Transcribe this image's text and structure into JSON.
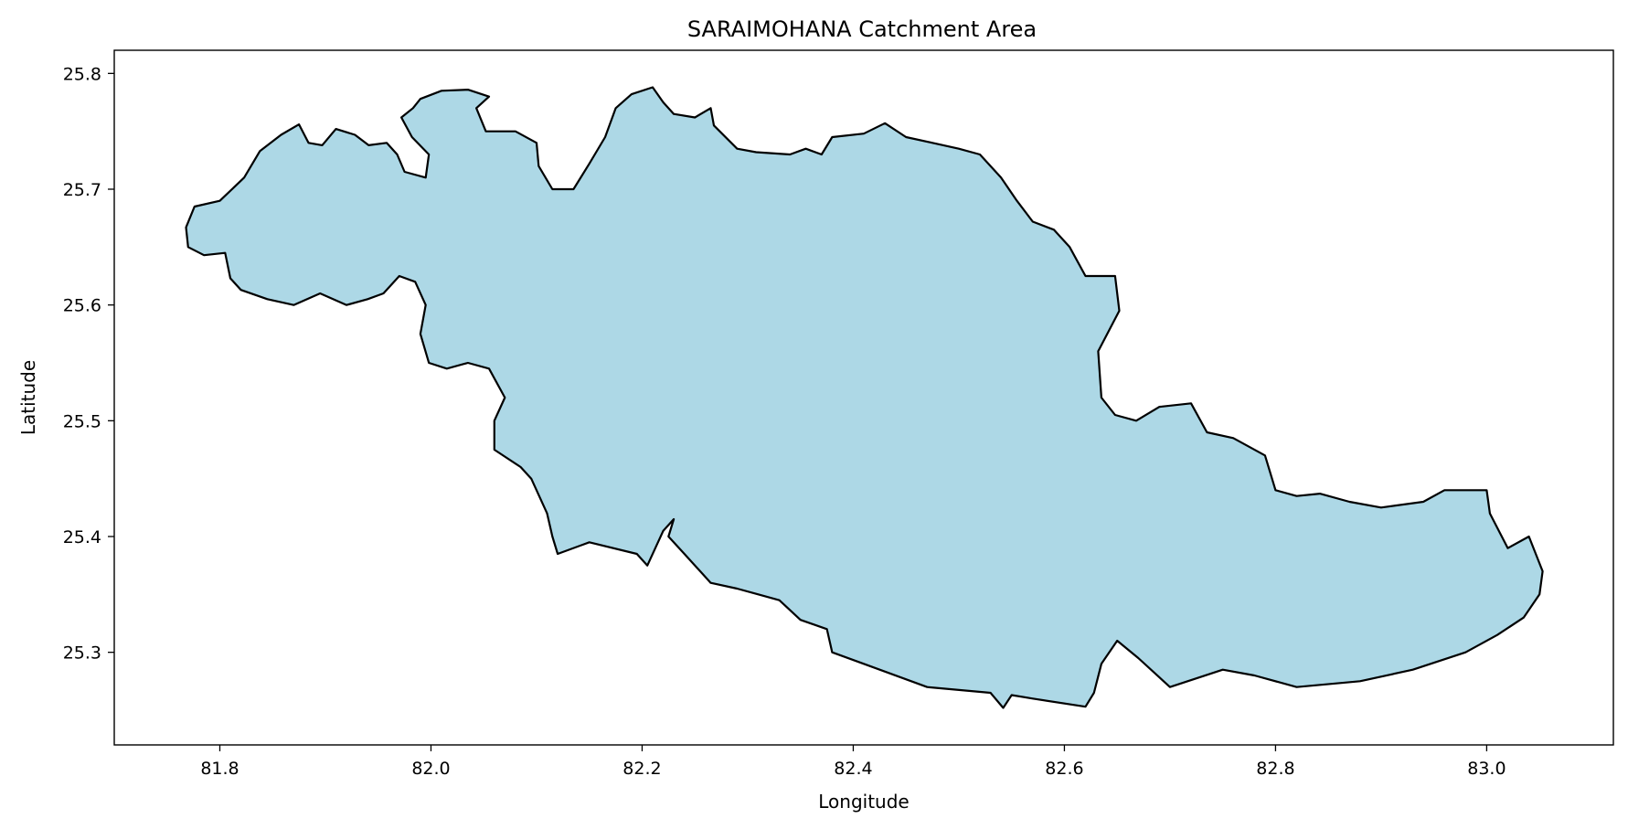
{
  "chart_data": {
    "type": "map",
    "title": "SARAIMOHANA Catchment Area",
    "xlabel": "Longitude",
    "ylabel": "Latitude",
    "xlim": [
      81.7,
      83.12
    ],
    "ylim": [
      25.22,
      25.82
    ],
    "x_ticks": [
      81.8,
      82.0,
      82.2,
      82.4,
      82.6,
      82.8,
      83.0
    ],
    "x_tick_labels": [
      "81.8",
      "82.0",
      "82.2",
      "82.4",
      "82.6",
      "82.8",
      "83.0"
    ],
    "y_ticks": [
      25.3,
      25.4,
      25.5,
      25.6,
      25.7,
      25.8
    ],
    "y_tick_labels": [
      "25.3",
      "25.4",
      "25.5",
      "25.6",
      "25.7",
      "25.8"
    ],
    "grid": false,
    "fill_color": "#add8e6",
    "edge_color": "#000000",
    "boundary": [
      [
        81.768,
        25.667
      ],
      [
        81.776,
        25.685
      ],
      [
        81.8,
        25.69
      ],
      [
        81.823,
        25.71
      ],
      [
        81.838,
        25.733
      ],
      [
        81.858,
        25.747
      ],
      [
        81.875,
        25.756
      ],
      [
        81.884,
        25.74
      ],
      [
        81.897,
        25.738
      ],
      [
        81.91,
        25.752
      ],
      [
        81.928,
        25.747
      ],
      [
        81.941,
        25.738
      ],
      [
        81.958,
        25.74
      ],
      [
        81.968,
        25.73
      ],
      [
        81.975,
        25.715
      ],
      [
        81.995,
        25.71
      ],
      [
        81.998,
        25.73
      ],
      [
        81.982,
        25.745
      ],
      [
        81.972,
        25.762
      ],
      [
        81.983,
        25.77
      ],
      [
        81.99,
        25.778
      ],
      [
        82.01,
        25.785
      ],
      [
        82.035,
        25.786
      ],
      [
        82.055,
        25.78
      ],
      [
        82.043,
        25.77
      ],
      [
        82.052,
        25.75
      ],
      [
        82.08,
        25.75
      ],
      [
        82.1,
        25.74
      ],
      [
        82.102,
        25.72
      ],
      [
        82.115,
        25.7
      ],
      [
        82.135,
        25.7
      ],
      [
        82.15,
        25.722
      ],
      [
        82.165,
        25.745
      ],
      [
        82.175,
        25.77
      ],
      [
        82.19,
        25.782
      ],
      [
        82.21,
        25.788
      ],
      [
        82.22,
        25.775
      ],
      [
        82.23,
        25.765
      ],
      [
        82.25,
        25.762
      ],
      [
        82.265,
        25.77
      ],
      [
        82.268,
        25.755
      ],
      [
        82.29,
        25.735
      ],
      [
        82.308,
        25.732
      ],
      [
        82.34,
        25.73
      ],
      [
        82.355,
        25.735
      ],
      [
        82.37,
        25.73
      ],
      [
        82.38,
        25.745
      ],
      [
        82.41,
        25.748
      ],
      [
        82.43,
        25.757
      ],
      [
        82.45,
        25.745
      ],
      [
        82.475,
        25.74
      ],
      [
        82.5,
        25.735
      ],
      [
        82.52,
        25.73
      ],
      [
        82.54,
        25.71
      ],
      [
        82.555,
        25.69
      ],
      [
        82.57,
        25.672
      ],
      [
        82.59,
        25.665
      ],
      [
        82.605,
        25.65
      ],
      [
        82.62,
        25.625
      ],
      [
        82.648,
        25.625
      ],
      [
        82.652,
        25.595
      ],
      [
        82.632,
        25.56
      ],
      [
        82.635,
        25.52
      ],
      [
        82.648,
        25.505
      ],
      [
        82.668,
        25.5
      ],
      [
        82.69,
        25.512
      ],
      [
        82.72,
        25.515
      ],
      [
        82.735,
        25.49
      ],
      [
        82.76,
        25.485
      ],
      [
        82.79,
        25.47
      ],
      [
        82.8,
        25.44
      ],
      [
        82.82,
        25.435
      ],
      [
        82.842,
        25.437
      ],
      [
        82.87,
        25.43
      ],
      [
        82.9,
        25.425
      ],
      [
        82.94,
        25.43
      ],
      [
        82.96,
        25.44
      ],
      [
        83.0,
        25.44
      ],
      [
        83.003,
        25.42
      ],
      [
        83.02,
        25.39
      ],
      [
        83.04,
        25.4
      ],
      [
        83.053,
        25.37
      ],
      [
        83.05,
        25.35
      ],
      [
        83.035,
        25.33
      ],
      [
        83.01,
        25.315
      ],
      [
        82.98,
        25.3
      ],
      [
        82.93,
        25.285
      ],
      [
        82.88,
        25.275
      ],
      [
        82.82,
        25.27
      ],
      [
        82.78,
        25.28
      ],
      [
        82.75,
        25.285
      ],
      [
        82.7,
        25.27
      ],
      [
        82.67,
        25.295
      ],
      [
        82.65,
        25.31
      ],
      [
        82.635,
        25.29
      ],
      [
        82.628,
        25.265
      ],
      [
        82.62,
        25.253
      ],
      [
        82.57,
        25.26
      ],
      [
        82.55,
        25.263
      ],
      [
        82.542,
        25.252
      ],
      [
        82.53,
        25.265
      ],
      [
        82.47,
        25.27
      ],
      [
        82.41,
        25.29
      ],
      [
        82.38,
        25.3
      ],
      [
        82.375,
        25.32
      ],
      [
        82.35,
        25.328
      ],
      [
        82.33,
        25.345
      ],
      [
        82.31,
        25.35
      ],
      [
        82.29,
        25.355
      ],
      [
        82.265,
        25.36
      ],
      [
        82.255,
        25.37
      ],
      [
        82.24,
        25.385
      ],
      [
        82.225,
        25.4
      ],
      [
        82.23,
        25.415
      ],
      [
        82.22,
        25.405
      ],
      [
        82.205,
        25.375
      ],
      [
        82.195,
        25.385
      ],
      [
        82.15,
        25.395
      ],
      [
        82.12,
        25.385
      ],
      [
        82.115,
        25.4
      ],
      [
        82.11,
        25.42
      ],
      [
        82.095,
        25.45
      ],
      [
        82.085,
        25.46
      ],
      [
        82.06,
        25.475
      ],
      [
        82.06,
        25.5
      ],
      [
        82.07,
        25.52
      ],
      [
        82.055,
        25.545
      ],
      [
        82.035,
        25.55
      ],
      [
        82.015,
        25.545
      ],
      [
        81.998,
        25.55
      ],
      [
        81.99,
        25.575
      ],
      [
        81.995,
        25.6
      ],
      [
        81.985,
        25.62
      ],
      [
        81.97,
        25.625
      ],
      [
        81.955,
        25.61
      ],
      [
        81.94,
        25.605
      ],
      [
        81.92,
        25.6
      ],
      [
        81.895,
        25.61
      ],
      [
        81.87,
        25.6
      ],
      [
        81.845,
        25.605
      ],
      [
        81.82,
        25.613
      ],
      [
        81.81,
        25.623
      ],
      [
        81.805,
        25.645
      ],
      [
        81.785,
        25.643
      ],
      [
        81.77,
        25.65
      ]
    ]
  }
}
